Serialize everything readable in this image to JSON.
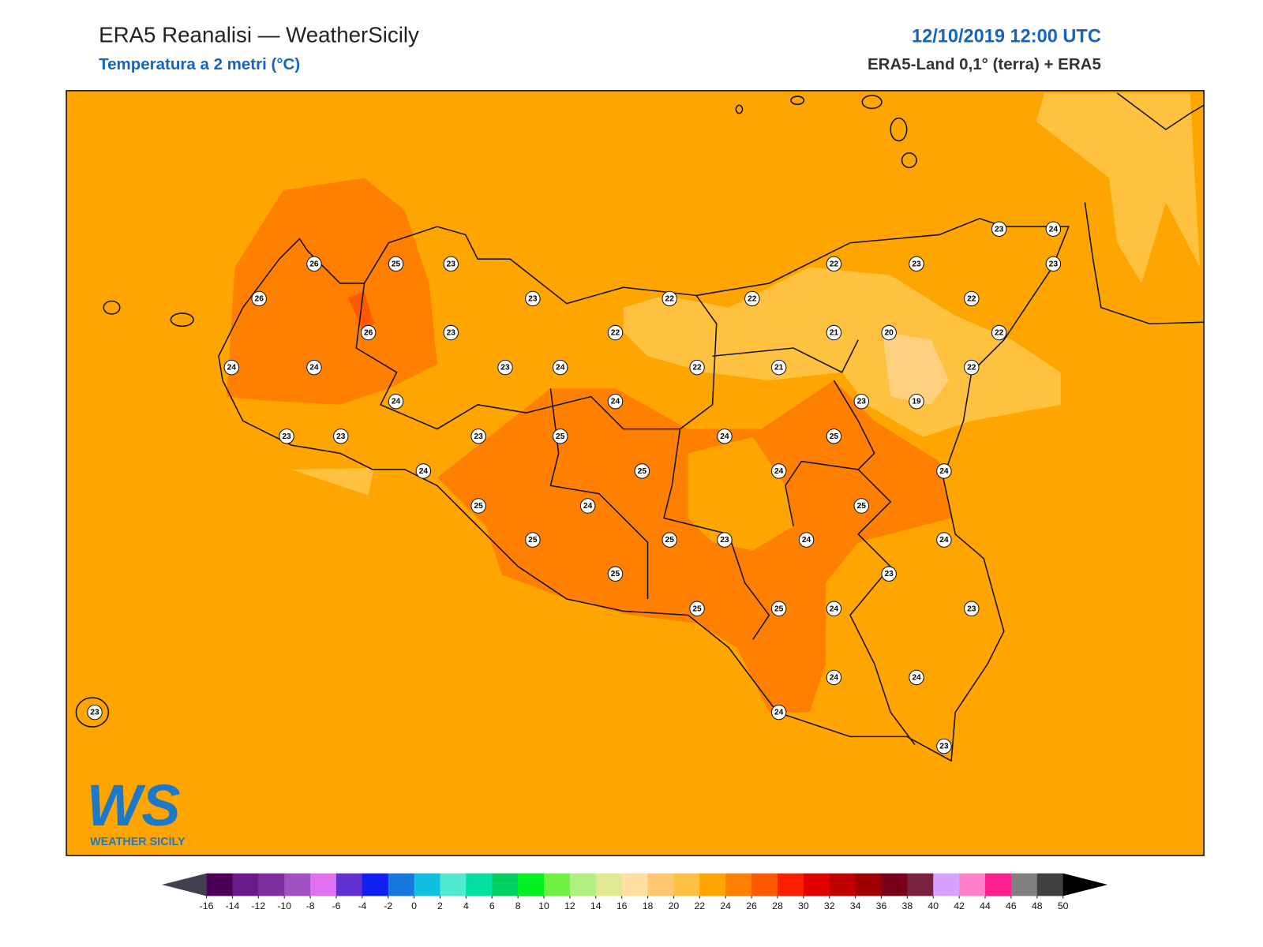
{
  "header": {
    "title": "ERA5 Reanalisi — WeatherSicily",
    "subtitle": "Temperatura a 2 metri (°C)",
    "datetime": "12/10/2019 12:00 UTC",
    "source": "ERA5-Land 0,1° (terra) + ERA5"
  },
  "logo": {
    "mark": "WS",
    "text": "WEATHER SICILY"
  },
  "stations": {
    "values": [
      26,
      25,
      23,
      26,
      23,
      22,
      22,
      22,
      23,
      23,
      24,
      23,
      22,
      22,
      26,
      23,
      22,
      21,
      20,
      24,
      24,
      23,
      24,
      22,
      21,
      22,
      24,
      24,
      23,
      19,
      23,
      23,
      23,
      25,
      24,
      25,
      24,
      25,
      24,
      24,
      25,
      24,
      25,
      25,
      25,
      23,
      24,
      24,
      23,
      25,
      25,
      25,
      24,
      23,
      24,
      24,
      23,
      24,
      23
    ]
  },
  "colorbar": {
    "ticks": [
      -16,
      -14,
      -12,
      -10,
      -8,
      -6,
      -4,
      -2,
      0,
      2,
      4,
      6,
      8,
      10,
      12,
      14,
      16,
      18,
      20,
      22,
      24,
      26,
      28,
      30,
      32,
      34,
      36,
      38,
      40,
      42,
      44,
      46,
      48,
      50
    ],
    "colors": [
      "#4b0055",
      "#6a1a8a",
      "#7f2fa0",
      "#a050c0",
      "#e070f0",
      "#6030d0",
      "#1020f0",
      "#1878e0",
      "#10c0e0",
      "#50e8d0",
      "#00e0a0",
      "#00d060",
      "#00f020",
      "#70f040",
      "#b0f080",
      "#e0e890",
      "#ffe0a0",
      "#ffc870",
      "#ffbf40",
      "#ffa500",
      "#ff8000",
      "#ff5a00",
      "#ff1e00",
      "#e00000",
      "#c00000",
      "#a00000",
      "#780018",
      "#7a2040",
      "#d8a0ff",
      "#ff80c8",
      "#ff2090",
      "#808080",
      "#404040"
    ],
    "under_color": "#404050",
    "over_color": "#000000"
  }
}
